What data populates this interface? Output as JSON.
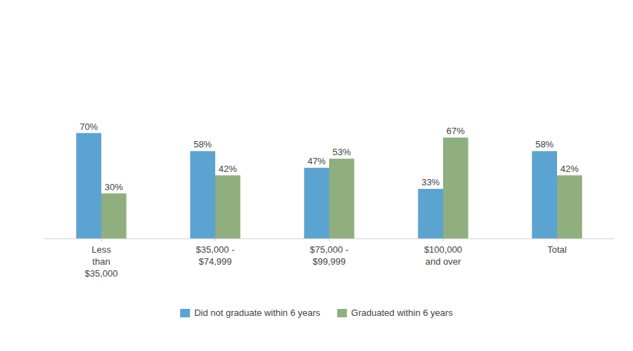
{
  "chart_data": {
    "type": "bar",
    "categories": [
      "Less\nthan\n$35,000",
      "$35,000 -\n$74,999",
      "$75,000 -\n$99,999",
      "$100,000\nand over",
      "Total"
    ],
    "series": [
      {
        "name": "Did not graduate within 6 years",
        "color": "#5BA3D0",
        "values": [
          70,
          58,
          47,
          33,
          58
        ],
        "value_labels": [
          "70%",
          "58%",
          "47%",
          "33%",
          "58%"
        ]
      },
      {
        "name": "Graduated within 6 years",
        "color": "#8FAF7E",
        "values": [
          30,
          42,
          53,
          67,
          42
        ],
        "value_labels": [
          "30%",
          "42%",
          "53%",
          "67%",
          "42%"
        ]
      }
    ],
    "ylim": [
      0,
      100
    ],
    "grid": false,
    "legend": "bottom",
    "data_labels": true,
    "tick_labels": "x"
  }
}
